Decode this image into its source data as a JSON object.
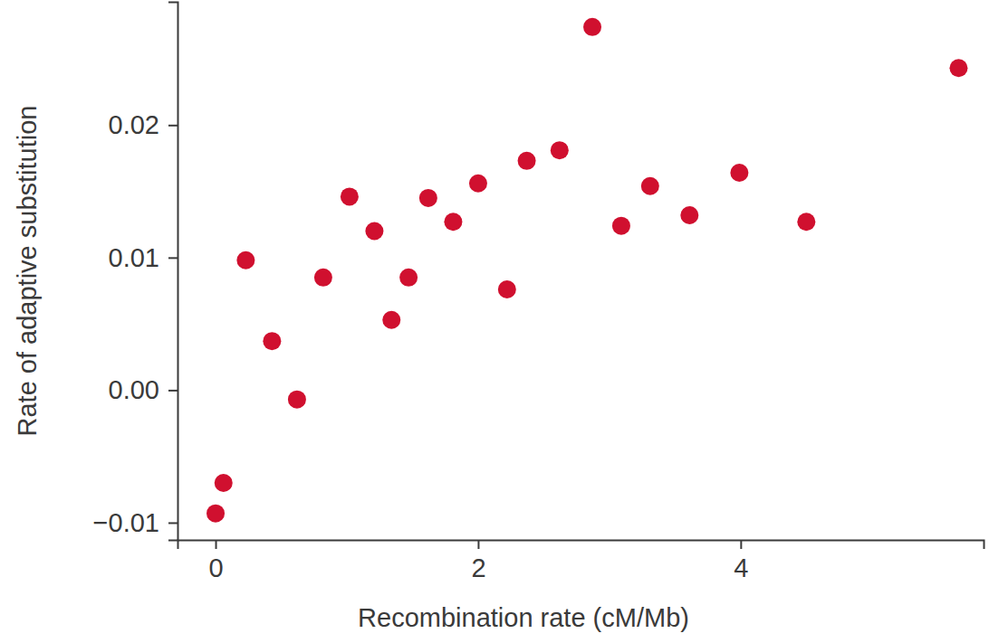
{
  "chart_data": {
    "type": "scatter",
    "x_label": "Recombination rate (cM/Mb)",
    "y_label": "Rate of adaptive substitution",
    "x": [
      0,
      0.06,
      0.23,
      0.43,
      0.62,
      0.82,
      1.02,
      1.21,
      1.34,
      1.47,
      1.62,
      1.81,
      2.0,
      2.22,
      2.37,
      2.62,
      2.87,
      3.09,
      3.31,
      3.61,
      3.99,
      4.5,
      5.66
    ],
    "values": [
      -0.0093,
      -0.007,
      0.0098,
      0.0037,
      -0.0007,
      0.0085,
      0.0146,
      0.012,
      0.0053,
      0.0085,
      0.0145,
      0.0127,
      0.0156,
      0.0076,
      0.0173,
      0.0181,
      0.0274,
      0.0124,
      0.0154,
      0.0132,
      0.0164,
      0.0127,
      0.0243
    ],
    "color": "#d0102f",
    "marker": "circle",
    "xlim": [
      -0.29,
      5.85
    ],
    "ylim": [
      -0.0113,
      0.0293
    ],
    "xticks": [
      0,
      2,
      4
    ],
    "yticks": [
      {
        "value": -0.01,
        "label": "−0.01"
      },
      {
        "value": 0,
        "label": "0.00"
      },
      0.01,
      0.02
    ],
    "grid": false
  }
}
